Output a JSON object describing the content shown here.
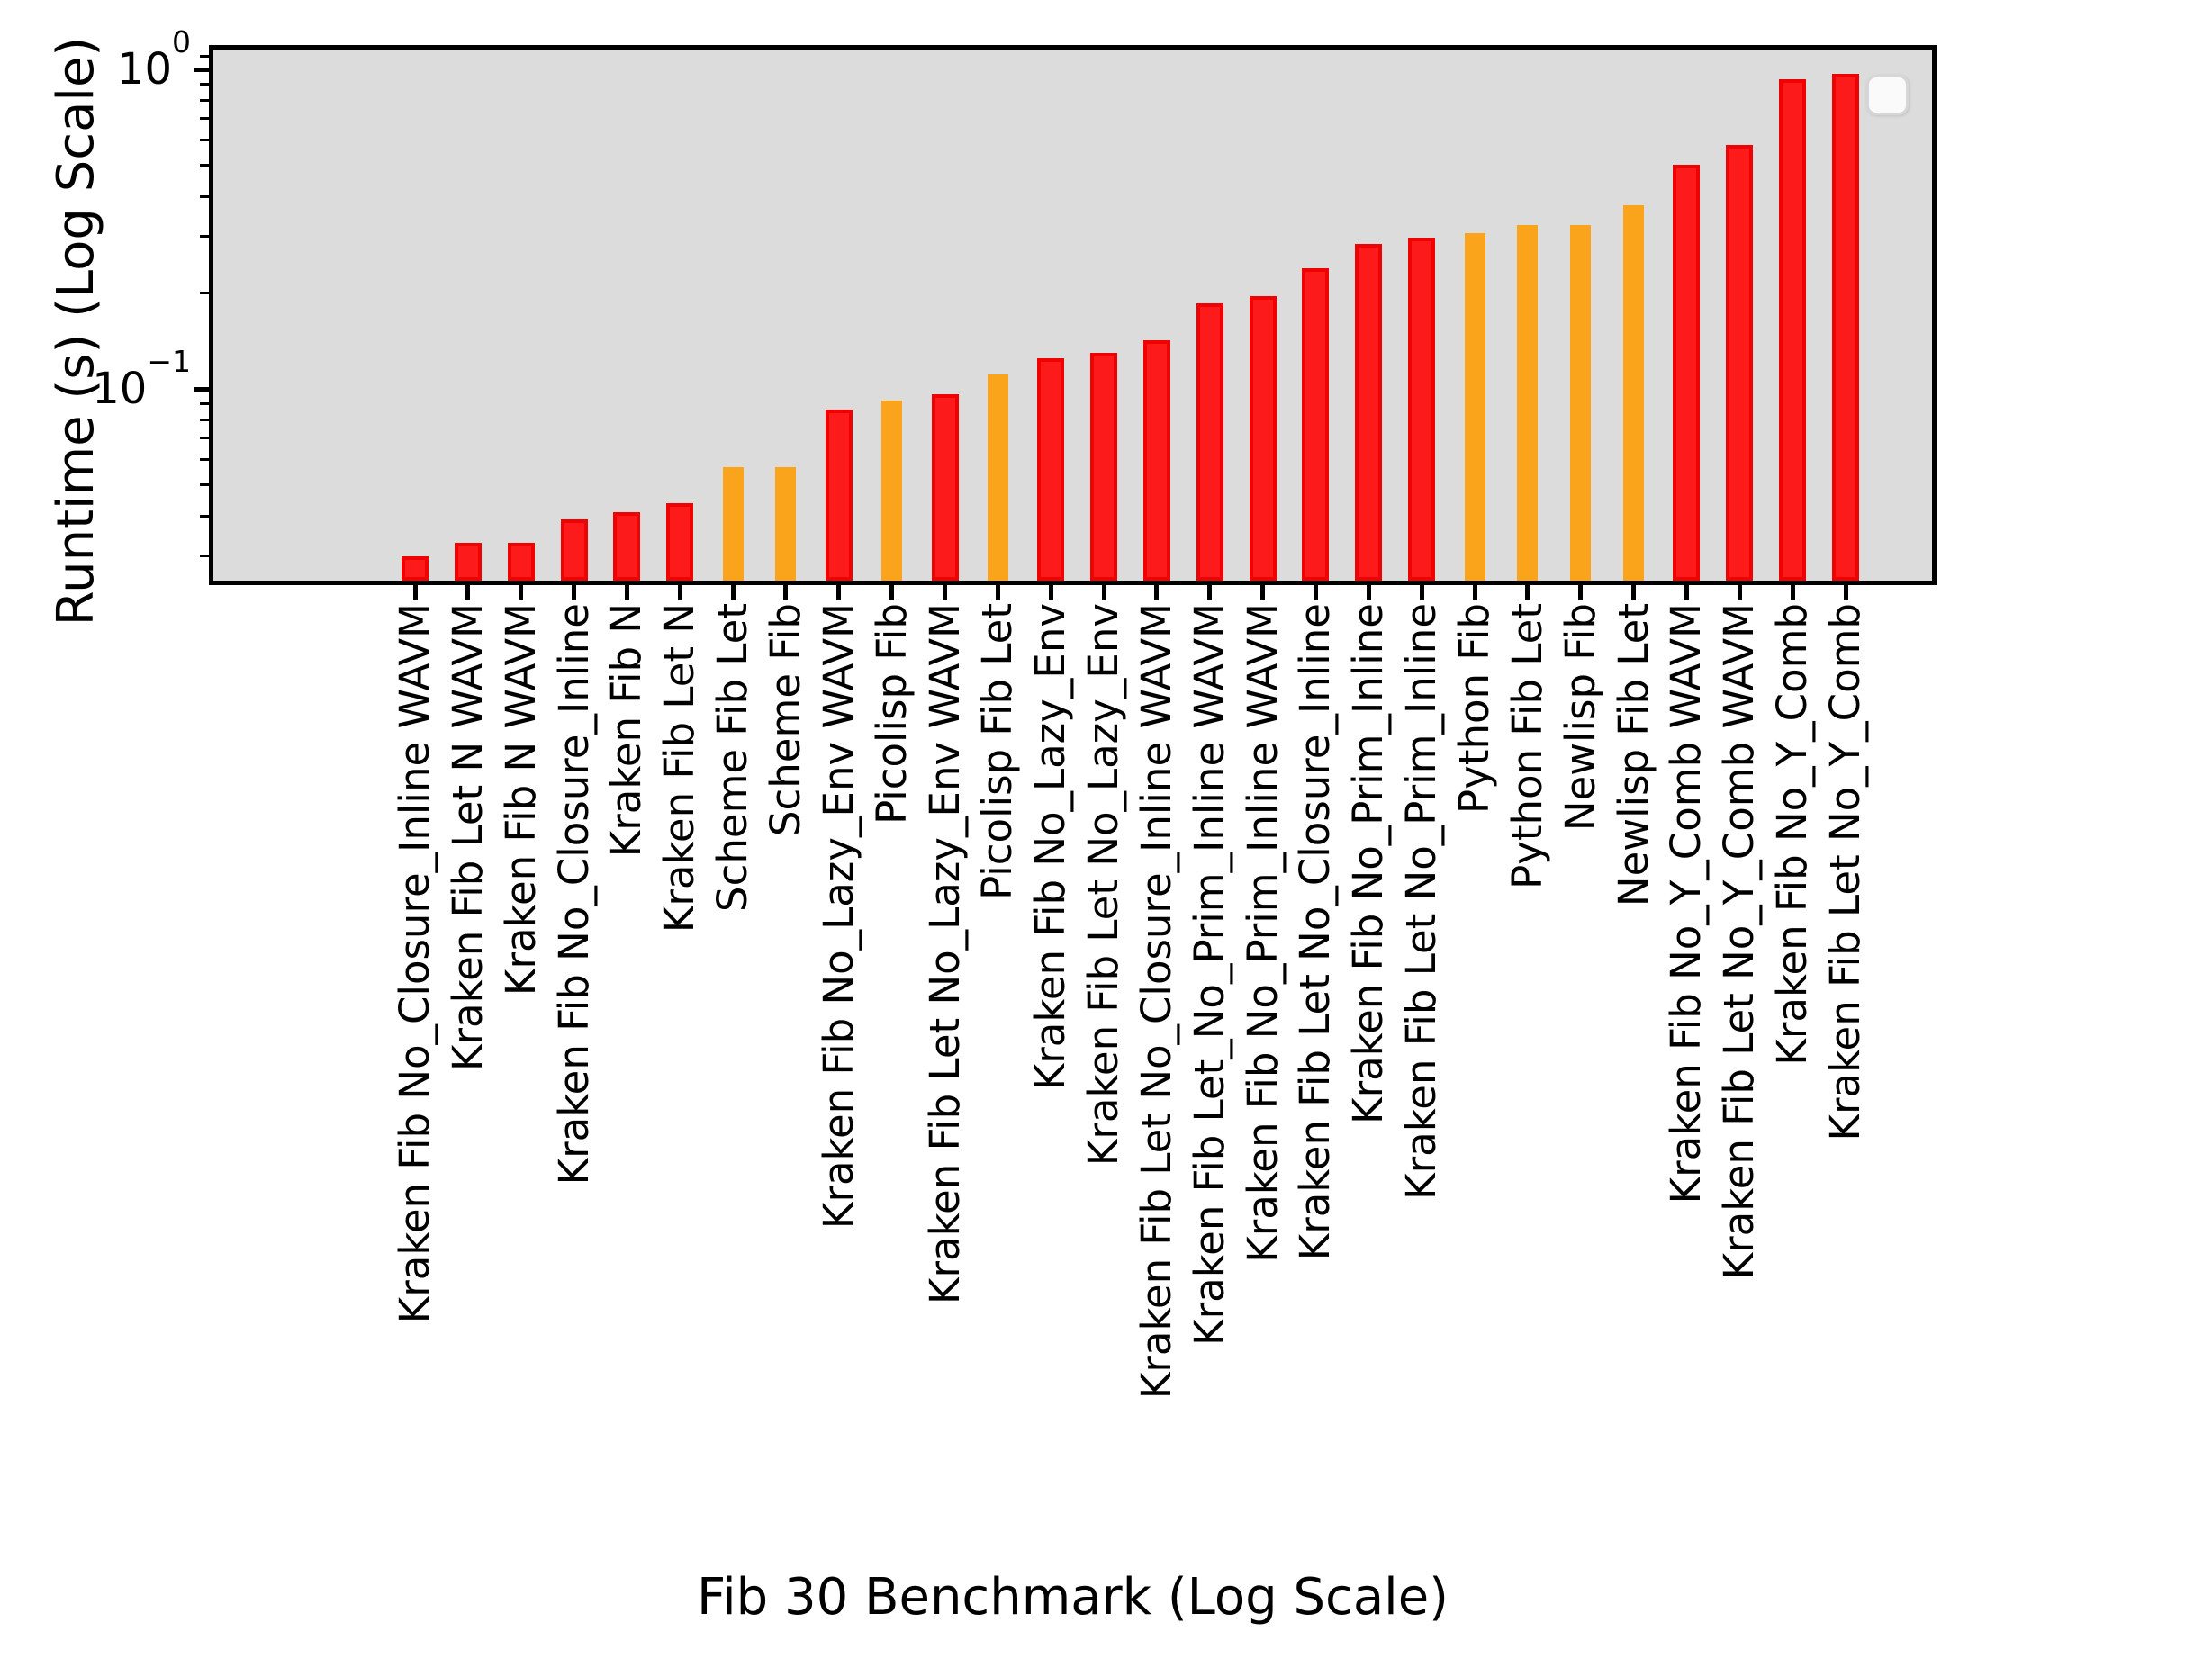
{
  "chart_data": {
    "type": "bar",
    "title": "",
    "xlabel": "Fib 30 Benchmark (Log Scale)",
    "ylabel": "Runtime (s) (Log Scale)",
    "yscale": "log",
    "ylim": [
      0.025,
      1.15
    ],
    "grid": false,
    "plot_background": "#dcdcdc",
    "legend": {
      "visible": true,
      "position": "upper right",
      "entries": []
    },
    "ytick_major": [
      {
        "value": 1,
        "label_base": "10",
        "label_exp": "0"
      },
      {
        "value": 0.1,
        "label_base": "10",
        "label_exp": "−1"
      }
    ],
    "ytick_minor_values": [
      1.1,
      0.9,
      0.8,
      0.7,
      0.6,
      0.5,
      0.4,
      0.3,
      0.2,
      0.09,
      0.08,
      0.07,
      0.06,
      0.05,
      0.04,
      0.03
    ],
    "bar_colors": {
      "red": {
        "fill": "#fd1a1a",
        "edge": "#ee0202"
      },
      "orange": {
        "fill": "#faa41c",
        "edge": "#faa41c"
      }
    },
    "bars": [
      {
        "label": "Kraken Fib No_Closure_Inline WAVM",
        "value": 0.03,
        "color": "red"
      },
      {
        "label": "Kraken Fib Let N WAVM",
        "value": 0.033,
        "color": "red"
      },
      {
        "label": "Kraken Fib N WAVM",
        "value": 0.033,
        "color": "red"
      },
      {
        "label": "Kraken Fib No_Closure_Inline",
        "value": 0.039,
        "color": "red"
      },
      {
        "label": "Kraken Fib N",
        "value": 0.041,
        "color": "red"
      },
      {
        "label": "Kraken Fib Let N",
        "value": 0.044,
        "color": "red"
      },
      {
        "label": "Scheme Fib Let",
        "value": 0.057,
        "color": "orange"
      },
      {
        "label": "Scheme Fib",
        "value": 0.057,
        "color": "orange"
      },
      {
        "label": "Kraken Fib No_Lazy_Env WAVM",
        "value": 0.086,
        "color": "red"
      },
      {
        "label": "Picolisp Fib",
        "value": 0.092,
        "color": "orange"
      },
      {
        "label": "Kraken Fib Let No_Lazy_Env WAVM",
        "value": 0.096,
        "color": "red"
      },
      {
        "label": "Picolisp Fib Let",
        "value": 0.111,
        "color": "orange"
      },
      {
        "label": "Kraken Fib No_Lazy_Env",
        "value": 0.125,
        "color": "red"
      },
      {
        "label": "Kraken Fib Let No_Lazy_Env",
        "value": 0.13,
        "color": "red"
      },
      {
        "label": "Kraken Fib Let No_Closure_Inline WAVM",
        "value": 0.142,
        "color": "red"
      },
      {
        "label": "Kraken Fib Let_No_Prim_Inline WAVM",
        "value": 0.185,
        "color": "red"
      },
      {
        "label": "Kraken Fib No_Prim_Inline WAVM",
        "value": 0.195,
        "color": "red"
      },
      {
        "label": "Kraken Fib Let No_Closure_Inline",
        "value": 0.238,
        "color": "red"
      },
      {
        "label": "Kraken Fib No_Prim_Inline",
        "value": 0.284,
        "color": "red"
      },
      {
        "label": "Kraken Fib Let No_Prim_Inline",
        "value": 0.297,
        "color": "red"
      },
      {
        "label": "Python Fib",
        "value": 0.307,
        "color": "orange"
      },
      {
        "label": "Python Fib Let",
        "value": 0.326,
        "color": "orange"
      },
      {
        "label": "Newlisp Fib",
        "value": 0.326,
        "color": "orange"
      },
      {
        "label": "Newlisp Fib Let",
        "value": 0.375,
        "color": "orange"
      },
      {
        "label": "Kraken Fib No_Y_Comb WAVM",
        "value": 0.503,
        "color": "red"
      },
      {
        "label": "Kraken Fib Let No_Y_Comb WAVM",
        "value": 0.58,
        "color": "red"
      },
      {
        "label": "Kraken Fib No_Y_Comb",
        "value": 0.931,
        "color": "red"
      },
      {
        "label": "Kraken Fib Let No_Y_Comb",
        "value": 0.968,
        "color": "red"
      }
    ]
  }
}
